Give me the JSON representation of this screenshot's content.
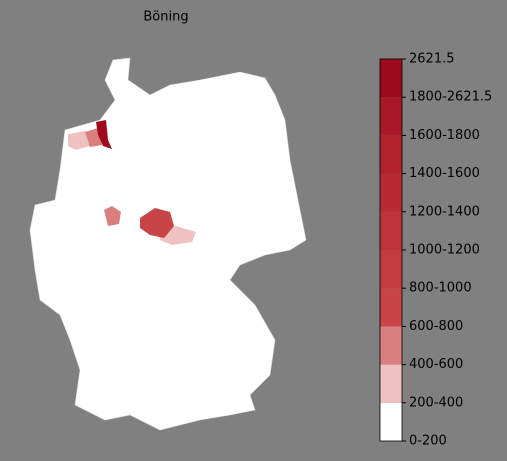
{
  "title": "Böning",
  "colorbar": {
    "top_label": "2621.5",
    "segments": [
      {
        "label": "0-200",
        "color": "#ffffff"
      },
      {
        "label": "200-400",
        "color": "#efc1c1"
      },
      {
        "label": "400-600",
        "color": "#da7f80"
      },
      {
        "label": "600-800",
        "color": "#c84446"
      },
      {
        "label": "800-1000",
        "color": "#c43c40"
      },
      {
        "label": "1000-1200",
        "color": "#bf343a"
      },
      {
        "label": "1200-1400",
        "color": "#b92b34"
      },
      {
        "label": "1400-1600",
        "color": "#b2222d"
      },
      {
        "label": "1600-1800",
        "color": "#a91826"
      },
      {
        "label": "1800-2621.5",
        "color": "#9e0b1e"
      }
    ]
  }
}
